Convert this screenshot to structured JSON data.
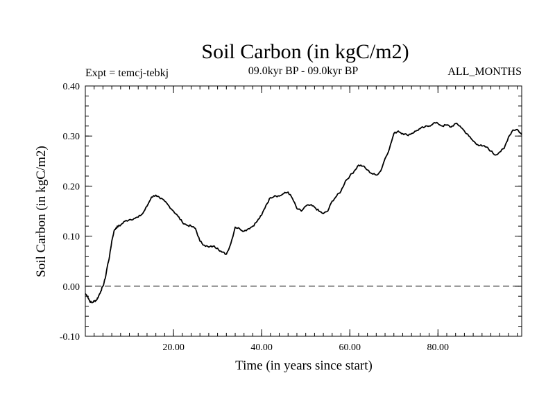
{
  "chart_data": {
    "type": "line",
    "title": "Soil Carbon (in kgC/m2)",
    "subtitle": "09.0kyr BP - 09.0kyr BP",
    "left_label": "Expt = temcj-tebkj",
    "right_label": "ALL_MONTHS",
    "xlabel": "Time (in years since start)",
    "ylabel": "Soil Carbon (in kgC/m2)",
    "xlim": [
      0,
      99
    ],
    "ylim": [
      -0.1,
      0.4
    ],
    "x_ticks": [
      20,
      40,
      60,
      80
    ],
    "x_tick_labels": [
      "20.00",
      "40.00",
      "60.00",
      "80.00"
    ],
    "y_ticks": [
      -0.1,
      0.0,
      0.1,
      0.2,
      0.3,
      0.4
    ],
    "y_tick_labels": [
      "-0.10",
      "0.00",
      "0.10",
      "0.20",
      "0.30",
      "0.40"
    ],
    "reference_line": {
      "y": 0.0,
      "style": "dashed"
    },
    "series": [
      {
        "name": "Soil Carbon",
        "x": [
          0,
          0.5,
          1,
          1.5,
          2,
          2.5,
          3,
          3.5,
          4,
          4.5,
          5,
          5.5,
          6,
          6.5,
          7,
          7.5,
          8,
          9,
          10,
          11,
          12,
          13,
          14,
          15,
          16,
          17,
          18,
          19,
          20,
          21,
          22,
          23,
          24,
          25,
          26,
          27,
          28,
          29,
          30,
          31,
          32,
          33,
          34,
          35,
          36,
          37,
          38,
          39,
          40,
          41,
          42,
          43,
          44,
          45,
          46,
          47,
          48,
          49,
          50,
          51,
          52,
          53,
          54,
          55,
          56,
          57,
          58,
          59,
          60,
          61,
          62,
          63,
          64,
          65,
          66,
          67,
          68,
          69,
          70,
          71,
          72,
          73,
          74,
          75,
          76,
          77,
          78,
          79,
          80,
          81,
          82,
          83,
          84,
          85,
          86,
          87,
          88,
          89,
          90,
          91,
          92,
          93,
          94,
          95,
          96,
          97,
          98,
          99
        ],
        "y": [
          -0.015,
          -0.02,
          -0.03,
          -0.033,
          -0.03,
          -0.028,
          -0.02,
          -0.01,
          0.0,
          0.015,
          0.04,
          0.06,
          0.09,
          0.11,
          0.117,
          0.12,
          0.122,
          0.13,
          0.133,
          0.135,
          0.138,
          0.145,
          0.16,
          0.178,
          0.182,
          0.175,
          0.17,
          0.16,
          0.15,
          0.14,
          0.128,
          0.122,
          0.12,
          0.115,
          0.09,
          0.082,
          0.078,
          0.08,
          0.076,
          0.068,
          0.064,
          0.085,
          0.118,
          0.115,
          0.11,
          0.115,
          0.12,
          0.13,
          0.142,
          0.162,
          0.177,
          0.181,
          0.18,
          0.185,
          0.188,
          0.175,
          0.155,
          0.15,
          0.16,
          0.162,
          0.158,
          0.15,
          0.145,
          0.15,
          0.17,
          0.18,
          0.19,
          0.21,
          0.22,
          0.23,
          0.242,
          0.24,
          0.232,
          0.225,
          0.222,
          0.23,
          0.255,
          0.275,
          0.305,
          0.31,
          0.305,
          0.302,
          0.305,
          0.31,
          0.315,
          0.318,
          0.32,
          0.326,
          0.325,
          0.32,
          0.322,
          0.318,
          0.325,
          0.32,
          0.31,
          0.3,
          0.29,
          0.283,
          0.28,
          0.278,
          0.27,
          0.262,
          0.268,
          0.275,
          0.298,
          0.312,
          0.313,
          0.303
        ]
      }
    ]
  }
}
